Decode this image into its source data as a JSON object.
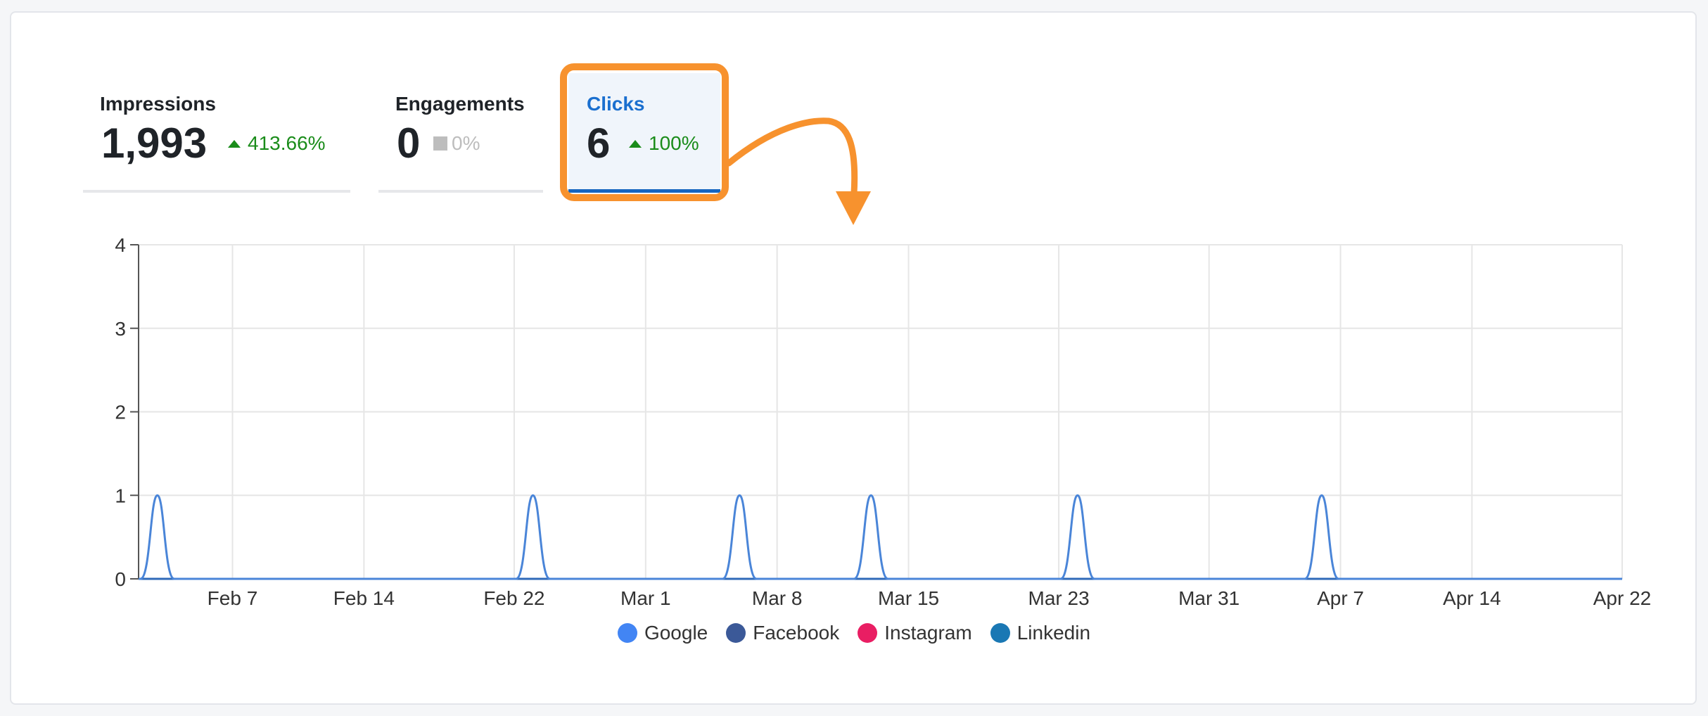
{
  "tabs": {
    "impressions": {
      "label": "Impressions",
      "value": "1,993",
      "change": "413.66%",
      "trend": "up"
    },
    "engagements": {
      "label": "Engagements",
      "value": "0",
      "change": "0%",
      "trend": "flat"
    },
    "clicks": {
      "label": "Clicks",
      "value": "6",
      "change": "100%",
      "trend": "up",
      "active": true
    }
  },
  "colors": {
    "positive": "#1a8c1a",
    "neutral": "#bdbdbd",
    "active_tab": "#1a6fcf",
    "highlight": "#f7922e",
    "line": "#4a85d8"
  },
  "legend": [
    {
      "name": "Google",
      "color": "#4285f4"
    },
    {
      "name": "Facebook",
      "color": "#3b5998"
    },
    {
      "name": "Instagram",
      "color": "#e91e63"
    },
    {
      "name": "Linkedin",
      "color": "#1a78b4"
    }
  ],
  "chart_data": {
    "type": "line",
    "xlim": [
      "Feb 2",
      "Apr 22"
    ],
    "ylim": [
      0,
      4
    ],
    "y_ticks": [
      "0",
      "1",
      "2",
      "3",
      "4"
    ],
    "x_ticks": [
      {
        "label": "Feb 7",
        "date": "2023-02-07"
      },
      {
        "label": "Feb 14",
        "date": "2023-02-14"
      },
      {
        "label": "Feb 22",
        "date": "2023-02-22"
      },
      {
        "label": "Mar 1",
        "date": "2023-03-01"
      },
      {
        "label": "Mar 8",
        "date": "2023-03-08"
      },
      {
        "label": "Mar 15",
        "date": "2023-03-15"
      },
      {
        "label": "Mar 23",
        "date": "2023-03-23"
      },
      {
        "label": "Mar 31",
        "date": "2023-03-31"
      },
      {
        "label": "Apr 7",
        "date": "2023-04-07"
      },
      {
        "label": "Apr 14",
        "date": "2023-04-14"
      },
      {
        "label": "Apr 22",
        "date": "2023-04-22"
      }
    ],
    "grid": true,
    "legend_position": "bottom",
    "series": [
      {
        "name": "Google",
        "color": "#4a85d8",
        "x": [
          "2023-02-03",
          "2023-02-23",
          "2023-03-06",
          "2023-03-13",
          "2023-03-24",
          "2023-04-06"
        ],
        "y": [
          1,
          1,
          1,
          1,
          1,
          1
        ]
      }
    ]
  }
}
